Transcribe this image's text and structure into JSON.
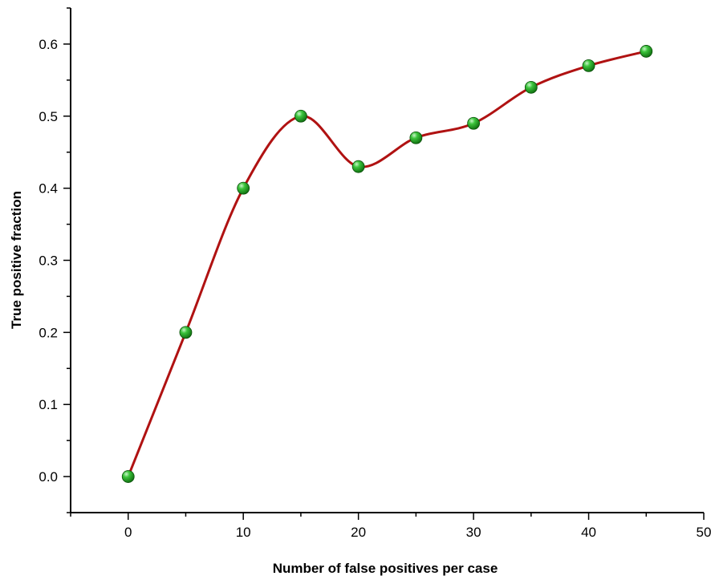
{
  "chart_data": {
    "type": "line",
    "title": "",
    "xlabel": "Number of false positives per case",
    "ylabel": "True positive fraction",
    "xlim": [
      -5,
      50
    ],
    "ylim": [
      -0.05,
      0.65
    ],
    "x_ticks": [
      0,
      10,
      20,
      30,
      40,
      50
    ],
    "y_ticks": [
      0.0,
      0.1,
      0.2,
      0.3,
      0.4,
      0.5,
      0.6
    ],
    "x_tick_labels": [
      "0",
      "10",
      "20",
      "30",
      "40",
      "50"
    ],
    "y_tick_labels": [
      "0.0",
      "0.1",
      "0.2",
      "0.3",
      "0.4",
      "0.5",
      "0.6"
    ],
    "grid": false,
    "smooth": true,
    "series": [
      {
        "x": [
          0,
          5,
          10,
          15,
          20,
          25,
          30,
          35,
          40,
          45
        ],
        "y": [
          0.0,
          0.2,
          0.4,
          0.5,
          0.43,
          0.47,
          0.49,
          0.54,
          0.57,
          0.59
        ],
        "line_color": "#b01212",
        "marker_color": "#1f9a1f"
      }
    ]
  }
}
